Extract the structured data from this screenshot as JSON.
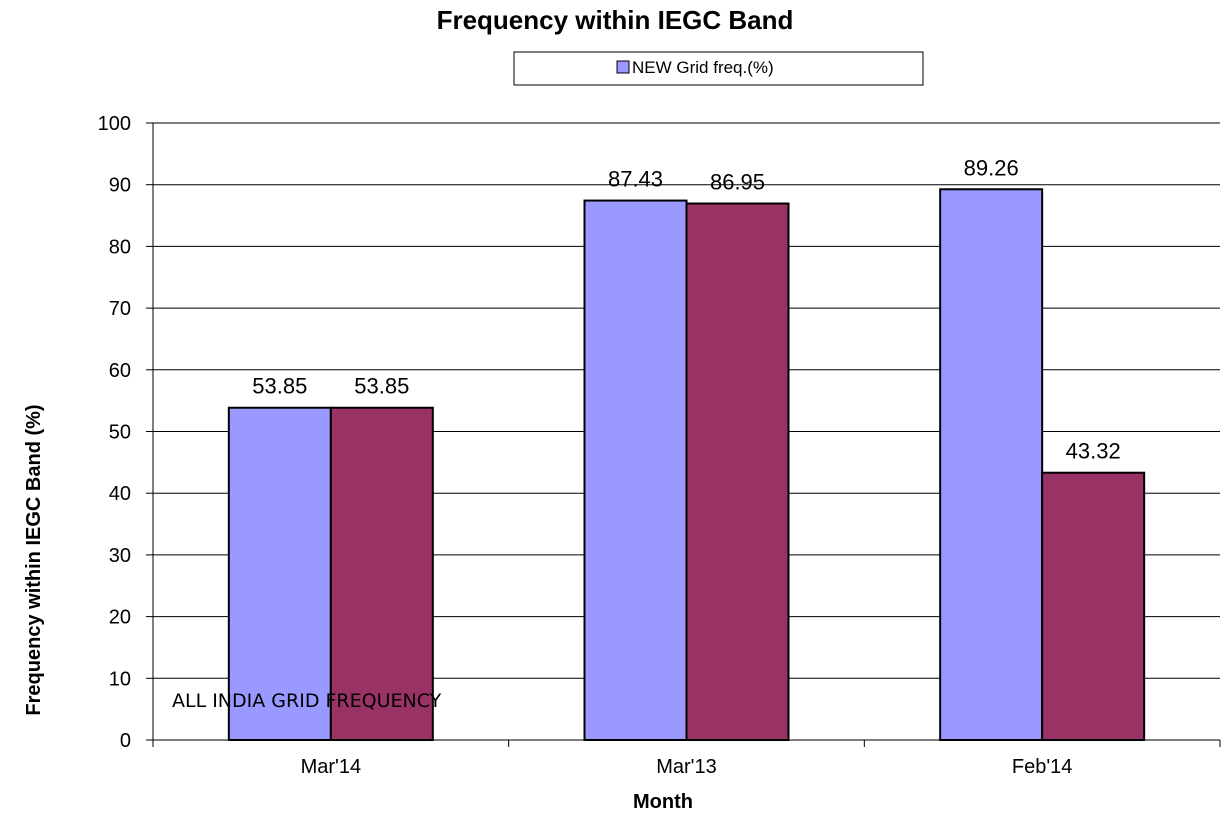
{
  "chart_data": {
    "type": "bar",
    "title": "Frequency within IEGC Band",
    "xlabel": "Month",
    "ylabel": "Frequency within IEGC Band (%)",
    "categories": [
      "Mar'14",
      "Mar'13",
      "Feb'14"
    ],
    "series": [
      {
        "name": "NEW Grid freq.(%)",
        "color": "#9999ff",
        "values": [
          53.85,
          87.43,
          89.26
        ]
      },
      {
        "color": "#993366",
        "values": [
          53.85,
          86.95,
          43.32
        ]
      }
    ],
    "ylim": [
      0,
      100
    ],
    "yticks": [
      0,
      10,
      20,
      30,
      40,
      50,
      60,
      70,
      80,
      90,
      100
    ],
    "grid": true,
    "legend_position": "top",
    "annotation": "ALL INDIA GRID FREQUENCY"
  }
}
